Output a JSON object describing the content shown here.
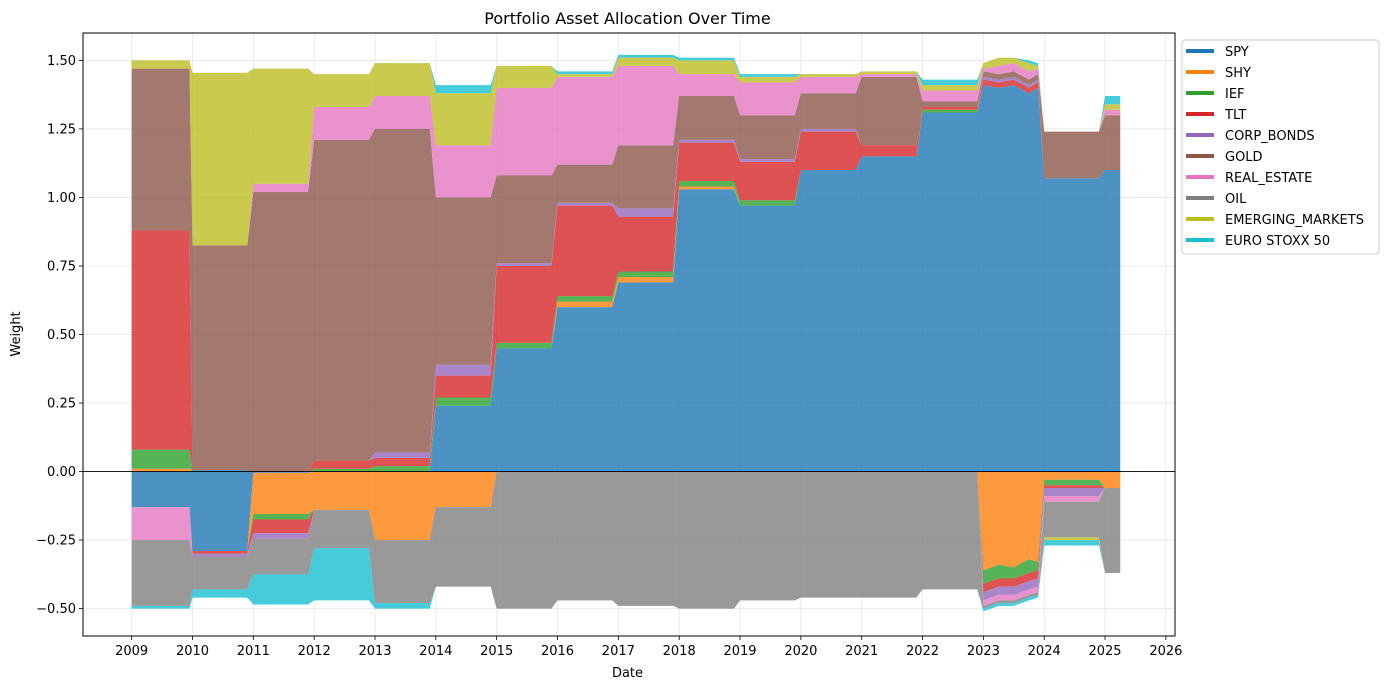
{
  "chart_data": {
    "type": "area",
    "title": "Portfolio Asset Allocation Over Time",
    "xlabel": "Date",
    "ylabel": "Weight",
    "xlim": [
      2008.2,
      2026.15
    ],
    "ylim": [
      -0.6,
      1.6
    ],
    "x_ticks": [
      "2009",
      "2010",
      "2011",
      "2012",
      "2013",
      "2014",
      "2015",
      "2016",
      "2017",
      "2018",
      "2019",
      "2020",
      "2021",
      "2022",
      "2023",
      "2024",
      "2025",
      "2026"
    ],
    "y_ticks": [
      "−0.50",
      "−0.25",
      "0.00",
      "0.25",
      "0.50",
      "0.75",
      "1.00",
      "1.25",
      "1.50"
    ],
    "grid": true,
    "legend_position": "outside top-right",
    "x": [
      2009.0,
      2009.95,
      2010.0,
      2010.9,
      2011.0,
      2011.9,
      2012.0,
      2012.9,
      2013.0,
      2013.9,
      2014.0,
      2014.9,
      2015.0,
      2015.9,
      2016.0,
      2016.9,
      2017.0,
      2017.9,
      2018.0,
      2018.9,
      2019.0,
      2019.9,
      2020.0,
      2020.9,
      2021.0,
      2021.9,
      2022.0,
      2022.9,
      2023.0,
      2023.25,
      2023.5,
      2023.75,
      2023.9,
      2024.0,
      2024.9,
      2025.0,
      2025.25
    ],
    "series": [
      {
        "name": "SPY",
        "color": "#1f77b4",
        "pos": [
          0,
          0,
          0.005,
          0.005,
          0,
          0,
          0,
          0,
          0,
          0,
          0.24,
          0.24,
          0.45,
          0.45,
          0.6,
          0.6,
          0.69,
          0.69,
          1.03,
          1.03,
          0.97,
          0.97,
          1.1,
          1.1,
          1.15,
          1.15,
          1.31,
          1.31,
          1.41,
          1.4,
          1.41,
          1.38,
          1.4,
          1.07,
          1.07,
          1.1,
          1.1
        ],
        "neg": [
          -0.13,
          -0.13,
          -0.29,
          -0.29,
          -0.005,
          -0.005,
          0,
          0,
          0,
          0,
          0,
          0,
          0,
          0,
          0,
          0,
          0,
          0,
          0,
          0,
          0,
          0,
          0,
          0,
          0,
          0,
          0,
          0,
          0,
          0,
          0,
          0,
          0,
          0,
          0,
          0,
          0
        ]
      },
      {
        "name": "SHY",
        "color": "#ff7f0e",
        "pos": [
          0.01,
          0.01,
          0,
          0,
          0,
          0,
          0,
          0,
          0,
          0,
          0,
          0,
          0,
          0,
          0.02,
          0.02,
          0.02,
          0.02,
          0.01,
          0.01,
          0,
          0,
          0,
          0,
          0,
          0,
          0,
          0,
          0,
          0,
          0,
          0,
          0,
          0,
          0,
          0,
          0
        ],
        "neg": [
          0,
          0,
          0,
          0,
          -0.15,
          -0.15,
          -0.14,
          -0.14,
          -0.25,
          -0.25,
          -0.13,
          -0.13,
          0,
          0,
          0,
          0,
          0,
          0,
          0,
          0,
          0,
          0,
          0,
          0,
          0,
          0,
          0,
          0,
          -0.36,
          -0.34,
          -0.35,
          -0.32,
          -0.33,
          -0.03,
          -0.03,
          -0.06,
          -0.06
        ]
      },
      {
        "name": "IEF",
        "color": "#2ca02c",
        "pos": [
          0.07,
          0.07,
          0,
          0,
          0,
          0,
          0.01,
          0.01,
          0.02,
          0.02,
          0.03,
          0.03,
          0.02,
          0.02,
          0.02,
          0.02,
          0.02,
          0.02,
          0.02,
          0.02,
          0.02,
          0.02,
          0,
          0,
          0,
          0,
          0.01,
          0.01,
          0,
          0,
          0,
          0,
          0,
          0,
          0,
          0,
          0
        ],
        "neg": [
          0,
          0,
          0,
          0,
          -0.02,
          -0.02,
          0,
          0,
          0,
          0,
          0,
          0,
          0,
          0,
          0,
          0,
          0,
          0,
          0,
          0,
          0,
          0,
          0,
          0,
          0,
          0,
          0,
          0,
          -0.05,
          -0.05,
          -0.04,
          -0.05,
          -0.03,
          -0.02,
          -0.02,
          0,
          0
        ]
      },
      {
        "name": "TLT",
        "color": "#d62728",
        "pos": [
          0.8,
          0.8,
          0,
          0,
          0,
          0,
          0.03,
          0.03,
          0.03,
          0.03,
          0.08,
          0.08,
          0.28,
          0.28,
          0.33,
          0.33,
          0.2,
          0.2,
          0.14,
          0.14,
          0.14,
          0.14,
          0.14,
          0.14,
          0.04,
          0.04,
          0.01,
          0.01,
          0.02,
          0.02,
          0.02,
          0.02,
          0.02,
          0,
          0,
          0,
          0
        ],
        "neg": [
          0,
          0,
          -0.01,
          -0.01,
          -0.05,
          -0.05,
          0,
          0,
          0,
          0,
          0,
          0,
          0,
          0,
          0,
          0,
          0,
          0,
          0,
          0,
          0,
          0,
          0,
          0,
          0,
          0,
          0,
          0,
          -0.03,
          -0.03,
          -0.03,
          -0.03,
          -0.03,
          -0.01,
          -0.01,
          0,
          0
        ]
      },
      {
        "name": "CORP_BONDS",
        "color": "#9467bd",
        "pos": [
          0,
          0,
          0,
          0,
          0,
          0,
          0,
          0,
          0.02,
          0.02,
          0.04,
          0.04,
          0.01,
          0.01,
          0.01,
          0.01,
          0.03,
          0.03,
          0.01,
          0.01,
          0.01,
          0.01,
          0.01,
          0.01,
          0,
          0,
          0,
          0,
          0.01,
          0.01,
          0.01,
          0.01,
          0.01,
          0,
          0,
          0,
          0
        ],
        "neg": [
          0,
          0,
          -0.01,
          -0.01,
          -0.02,
          -0.02,
          0,
          0,
          0,
          0,
          0,
          0,
          0,
          0,
          0,
          0,
          0,
          0,
          0,
          0,
          0,
          0,
          0,
          0,
          0,
          0,
          0,
          0,
          -0.03,
          -0.03,
          -0.03,
          -0.03,
          -0.03,
          -0.03,
          -0.03,
          0,
          0
        ]
      },
      {
        "name": "GOLD",
        "color": "#8c564b",
        "pos": [
          0.59,
          0.59,
          0.82,
          0.82,
          1.02,
          1.02,
          1.17,
          1.17,
          1.18,
          1.18,
          0.61,
          0.61,
          0.32,
          0.32,
          0.14,
          0.14,
          0.23,
          0.23,
          0.16,
          0.16,
          0.16,
          0.16,
          0.13,
          0.13,
          0.25,
          0.25,
          0.02,
          0.02,
          0.02,
          0.02,
          0.02,
          0.02,
          0.02,
          0.17,
          0.17,
          0.2,
          0.2
        ],
        "neg": [
          0,
          0,
          0,
          0,
          0,
          0,
          0,
          0,
          0,
          0,
          0,
          0,
          0,
          0,
          0,
          0,
          0,
          0,
          0,
          0,
          0,
          0,
          0,
          0,
          0,
          0,
          0,
          0,
          0,
          0,
          0,
          0,
          0,
          0,
          0,
          0,
          0
        ]
      },
      {
        "name": "REAL_ESTATE",
        "color": "#e377c2",
        "pos": [
          0,
          0,
          0,
          0,
          0.03,
          0.03,
          0.12,
          0.12,
          0.12,
          0.12,
          0.19,
          0.19,
          0.32,
          0.32,
          0.32,
          0.32,
          0.29,
          0.29,
          0.08,
          0.08,
          0.12,
          0.12,
          0.06,
          0.06,
          0.01,
          0.01,
          0.04,
          0.04,
          0.01,
          0.03,
          0.03,
          0.03,
          0.02,
          0,
          0,
          0.02,
          0.02
        ],
        "neg": [
          -0.12,
          -0.12,
          0,
          0,
          0,
          0,
          0,
          0,
          0,
          0,
          0,
          0,
          0,
          0,
          0,
          0,
          0,
          0,
          0,
          0,
          0,
          0,
          0,
          0,
          0,
          0,
          0,
          0,
          -0.02,
          -0.02,
          -0.02,
          -0.02,
          -0.02,
          -0.02,
          -0.02,
          0,
          0
        ]
      },
      {
        "name": "OIL",
        "color": "#7f7f7f",
        "pos": [
          0,
          0,
          0,
          0,
          0,
          0,
          0,
          0,
          0,
          0,
          0,
          0,
          0,
          0,
          0,
          0,
          0,
          0,
          0,
          0,
          0,
          0,
          0,
          0,
          0,
          0,
          0,
          0,
          0,
          0,
          0,
          0,
          0,
          0,
          0,
          0,
          0
        ],
        "neg": [
          -0.24,
          -0.24,
          -0.12,
          -0.12,
          -0.13,
          -0.13,
          -0.14,
          -0.14,
          -0.23,
          -0.23,
          -0.29,
          -0.29,
          -0.5,
          -0.5,
          -0.47,
          -0.47,
          -0.49,
          -0.49,
          -0.5,
          -0.5,
          -0.47,
          -0.47,
          -0.46,
          -0.46,
          -0.46,
          -0.46,
          -0.43,
          -0.43,
          -0.01,
          -0.01,
          -0.01,
          -0.01,
          -0.01,
          -0.13,
          -0.13,
          -0.31,
          -0.31
        ]
      },
      {
        "name": "EMERGING_MARKETS",
        "color": "#bcbd22",
        "pos": [
          0.03,
          0.03,
          0.63,
          0.63,
          0.42,
          0.42,
          0.12,
          0.12,
          0.12,
          0.12,
          0.19,
          0.19,
          0.08,
          0.08,
          0.01,
          0.01,
          0.03,
          0.03,
          0.05,
          0.05,
          0.02,
          0.02,
          0.01,
          0.01,
          0.01,
          0.01,
          0.02,
          0.02,
          0.02,
          0.03,
          0.02,
          0.03,
          0.01,
          0,
          0,
          0.02,
          0.02
        ],
        "neg": [
          0,
          0,
          0,
          0,
          0,
          0,
          0,
          0,
          0,
          0,
          0,
          0,
          0,
          0,
          0,
          0,
          0,
          0,
          0,
          0,
          0,
          0,
          0,
          0,
          0,
          0,
          0,
          0,
          0,
          0,
          0,
          0,
          0,
          -0.01,
          -0.01,
          0,
          0
        ]
      },
      {
        "name": "EURO STOXX 50",
        "color": "#17becf",
        "pos": [
          0,
          0,
          0,
          0,
          0,
          0,
          0,
          0,
          0,
          0,
          0.03,
          0.03,
          0,
          0,
          0.01,
          0.01,
          0.01,
          0.01,
          0.01,
          0.01,
          0.01,
          0.01,
          0,
          0,
          0,
          0,
          0.02,
          0.02,
          0,
          0,
          0,
          0.01,
          0.01,
          0,
          0,
          0.03,
          0.03
        ],
        "neg": [
          -0.01,
          -0.01,
          -0.03,
          -0.03,
          -0.11,
          -0.11,
          -0.19,
          -0.19,
          -0.02,
          -0.02,
          0,
          0,
          0,
          0,
          0,
          0,
          0,
          0,
          0,
          0,
          0,
          0,
          0,
          0,
          0,
          0,
          0,
          0,
          -0.01,
          -0.01,
          -0.01,
          -0.01,
          -0.01,
          -0.02,
          -0.02,
          0,
          0
        ]
      }
    ]
  }
}
